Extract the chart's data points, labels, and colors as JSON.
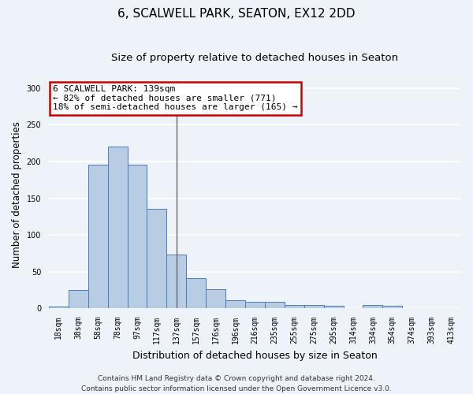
{
  "title": "6, SCALWELL PARK, SEATON, EX12 2DD",
  "subtitle": "Size of property relative to detached houses in Seaton",
  "xlabel": "Distribution of detached houses by size in Seaton",
  "ylabel": "Number of detached properties",
  "categories": [
    "18sqm",
    "38sqm",
    "58sqm",
    "78sqm",
    "97sqm",
    "117sqm",
    "137sqm",
    "157sqm",
    "176sqm",
    "196sqm",
    "216sqm",
    "235sqm",
    "255sqm",
    "275sqm",
    "295sqm",
    "314sqm",
    "334sqm",
    "354sqm",
    "374sqm",
    "393sqm",
    "413sqm"
  ],
  "values": [
    2,
    25,
    196,
    220,
    196,
    135,
    73,
    41,
    26,
    11,
    9,
    9,
    5,
    4,
    3,
    0,
    4,
    3,
    0,
    0,
    0
  ],
  "bar_color": "#b8cce4",
  "bar_edge_color": "#4a7abf",
  "property_line_index": 6,
  "property_line_color": "#666666",
  "annotation_text": "6 SCALWELL PARK: 139sqm\n← 82% of detached houses are smaller (771)\n18% of semi-detached houses are larger (165) →",
  "annotation_box_color": "#ffffff",
  "annotation_box_edge_color": "#cc0000",
  "ylim": [
    0,
    310
  ],
  "yticks": [
    0,
    50,
    100,
    150,
    200,
    250,
    300
  ],
  "footer_line1": "Contains HM Land Registry data © Crown copyright and database right 2024.",
  "footer_line2": "Contains public sector information licensed under the Open Government Licence v3.0.",
  "bg_color": "#eef2f9",
  "plot_bg_color": "#eef2f9",
  "grid_color": "#ffffff",
  "title_fontsize": 11,
  "subtitle_fontsize": 9.5,
  "xlabel_fontsize": 9,
  "ylabel_fontsize": 8.5,
  "tick_fontsize": 7,
  "annotation_fontsize": 8,
  "footer_fontsize": 6.5
}
